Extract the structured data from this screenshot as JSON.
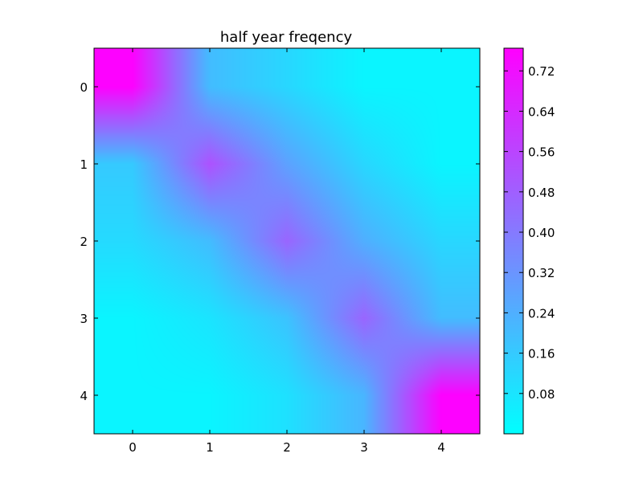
{
  "chart_data": {
    "type": "heatmap",
    "title": "half year freqency",
    "xlabel": "",
    "ylabel": "",
    "x_ticks": [
      "0",
      "1",
      "2",
      "3",
      "4"
    ],
    "y_ticks": [
      "0",
      "1",
      "2",
      "3",
      "4"
    ],
    "values": [
      [
        0.76,
        0.2,
        0.12,
        0.03,
        0.03
      ],
      [
        0.16,
        0.52,
        0.28,
        0.12,
        0.03
      ],
      [
        0.11,
        0.2,
        0.46,
        0.24,
        0.12
      ],
      [
        0.03,
        0.08,
        0.18,
        0.46,
        0.2
      ],
      [
        0.03,
        0.03,
        0.09,
        0.22,
        0.76
      ]
    ],
    "colormap": "cool",
    "colormap_start": "#00ffff",
    "colormap_end": "#ff00ff",
    "interpolation": "bilinear",
    "colorbar": {
      "ticks": [
        0.08,
        0.16,
        0.24,
        0.32,
        0.4,
        0.48,
        0.56,
        0.64,
        0.72
      ],
      "tick_labels": [
        "0.08",
        "0.16",
        "0.24",
        "0.32",
        "0.40",
        "0.48",
        "0.56",
        "0.64",
        "0.72"
      ],
      "range": [
        0.0,
        0.765
      ]
    }
  }
}
